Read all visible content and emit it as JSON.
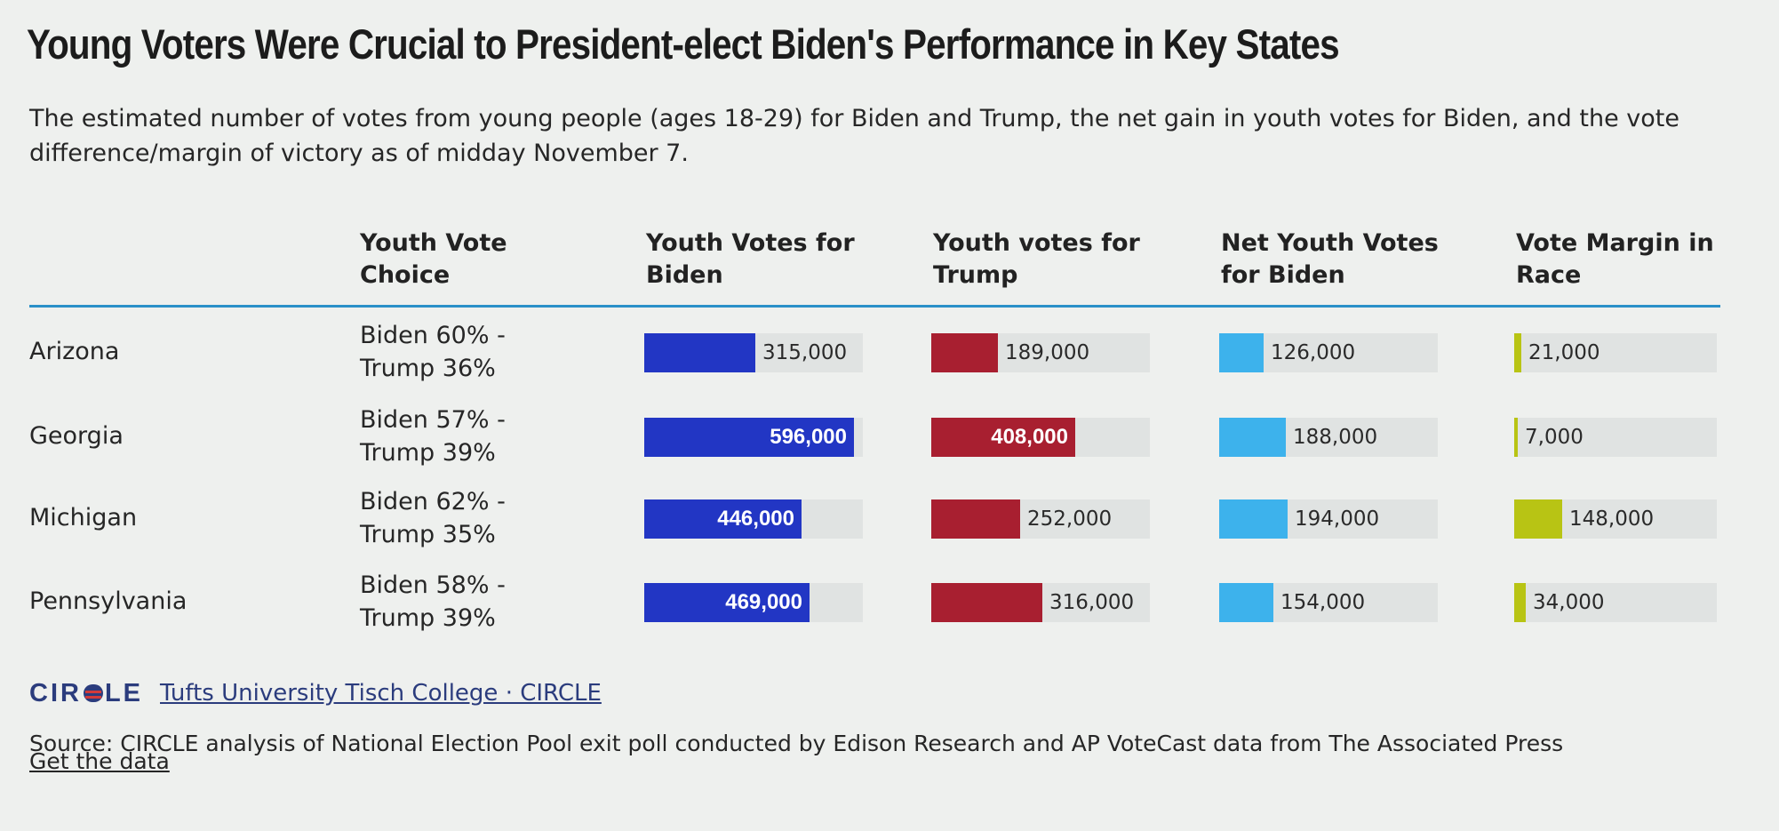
{
  "chart_data": {
    "type": "table",
    "title": "Young Voters Were Crucial to President-elect Biden's Performance in Key States",
    "subtitle": "The estimated number of votes from young people (ages 18-29) for Biden and Trump, the net gain in youth votes for Biden, and the vote difference/margin of victory as of midday November 7.",
    "columns": [
      "",
      "Youth Vote Choice",
      "Youth Votes for Biden",
      "Youth votes for Trump",
      "Net Youth Votes for Biden",
      "Vote Margin in Race"
    ],
    "column_headers": {
      "choice": [
        "Youth Vote",
        "Choice"
      ],
      "biden": [
        "Youth Votes for",
        "Biden"
      ],
      "trump": [
        "Youth votes for",
        "Trump"
      ],
      "net": [
        "Net Youth Votes",
        "for Biden"
      ],
      "margin": [
        "Vote Margin in",
        "Race"
      ]
    },
    "rows": [
      {
        "state": "Arizona",
        "choice": [
          "Biden 60% -",
          "Trump 36%"
        ],
        "biden": 315000,
        "biden_label": "315,000",
        "trump": 189000,
        "trump_label": "189,000",
        "net": 126000,
        "net_label": "126,000",
        "margin": 21000,
        "margin_label": "21,000"
      },
      {
        "state": "Georgia",
        "choice": [
          "Biden 57% -",
          "Trump 39%"
        ],
        "biden": 596000,
        "biden_label": "596,000",
        "trump": 408000,
        "trump_label": "408,000",
        "net": 188000,
        "net_label": "188,000",
        "margin": 7000,
        "margin_label": "7,000"
      },
      {
        "state": "Michigan",
        "choice": [
          "Biden 62% -",
          "Trump 35%"
        ],
        "biden": 446000,
        "biden_label": "446,000",
        "trump": 252000,
        "trump_label": "252,000",
        "net": 194000,
        "net_label": "194,000",
        "margin": 148000,
        "margin_label": "148,000"
      },
      {
        "state": "Pennsylvania",
        "choice": [
          "Biden 58% -",
          "Trump 39%"
        ],
        "biden": 469000,
        "biden_label": "469,000",
        "trump": 316000,
        "trump_label": "316,000",
        "net": 154000,
        "net_label": "154,000",
        "margin": 34000,
        "margin_label": "34,000"
      }
    ],
    "scales": {
      "biden_max": 620000,
      "trump_max": 620000,
      "net_max": 620000,
      "margin_max": 620000
    },
    "colors": {
      "biden": "#2236c4",
      "trump": "#a81f30",
      "net": "#3db2ec",
      "margin": "#b8c414",
      "track": "#e0e3e2",
      "rule": "#2a90c8"
    }
  },
  "footer": {
    "logo_text_left": "CIR",
    "logo_text_right": "LE",
    "credit": "Tufts University Tisch College · CIRCLE",
    "source": "Source: CIRCLE analysis of National Election Pool exit poll conducted by Edison Research and AP VoteCast data from The Associated Press",
    "get_data": "Get the data"
  }
}
